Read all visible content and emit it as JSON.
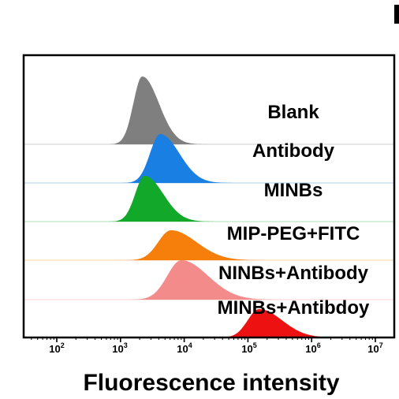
{
  "chart_data": {
    "type": "area",
    "xlabel": "Fluorescence intensity",
    "x_scale": "log",
    "xlim": [
      10,
      10000000
    ],
    "x_ticks": [
      {
        "value": 100,
        "base": "10",
        "exp": "2"
      },
      {
        "value": 1000,
        "base": "10",
        "exp": "3"
      },
      {
        "value": 10000,
        "base": "10",
        "exp": "4"
      },
      {
        "value": 100000,
        "base": "10",
        "exp": "5"
      },
      {
        "value": 1000000,
        "base": "10",
        "exp": "6"
      },
      {
        "value": 10000000,
        "base": "10",
        "exp": "7"
      }
    ],
    "grid": false,
    "legend": "none",
    "series": [
      {
        "name": "Blank",
        "color": "#7f7f7f",
        "peak": 2200,
        "spread": 0.14,
        "skew": 0.12
      },
      {
        "name": "Antibody",
        "color": "#1a7fe3",
        "peak": 4200,
        "spread": 0.16,
        "skew": 0.14
      },
      {
        "name": "MINBs",
        "color": "#12a82a",
        "peak": 2400,
        "spread": 0.15,
        "skew": 0.14
      },
      {
        "name": "MIP-PEG+FITC",
        "color": "#f57f0a",
        "peak": 6200,
        "spread": 0.2,
        "skew": 0.2
      },
      {
        "name": "NINBs+Antibody",
        "color": "#f38b8b",
        "peak": 9000,
        "spread": 0.22,
        "skew": 0.2
      },
      {
        "name": "MINBs+Antibdoy",
        "color": "#ee1111",
        "peak": 150000,
        "spread": 0.18,
        "skew": 0.18
      }
    ]
  }
}
